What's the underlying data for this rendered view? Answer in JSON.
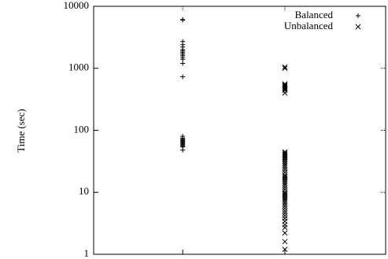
{
  "chart_data": {
    "type": "scatter",
    "ylabel": "Time (sec)",
    "categories": [
      null,
      null
    ],
    "log_y": true,
    "ylim": [
      1,
      10000
    ],
    "yticks": [
      1,
      10,
      100,
      1000,
      10000
    ],
    "legend": "upper right",
    "series": [
      {
        "name": "Balanced",
        "marker": "plus",
        "color": "#000000",
        "values": [
          6000,
          6100,
          2700,
          2400,
          2200,
          2000,
          1900,
          1800,
          1700,
          1600,
          1500,
          1400,
          1200,
          730,
          80,
          75,
          72,
          70,
          68,
          66,
          64,
          62,
          60,
          58,
          56,
          54,
          48
        ]
      },
      {
        "name": "Unbalanced",
        "marker": "cross",
        "color": "#000000",
        "values": [
          1050,
          1000,
          560,
          540,
          520,
          500,
          480,
          460,
          440,
          400,
          45,
          43,
          41,
          39,
          37,
          35,
          33,
          31,
          29,
          27,
          25,
          23,
          21,
          19,
          18,
          17,
          16,
          15,
          14,
          13,
          12,
          11,
          10,
          9.5,
          9,
          8.5,
          8,
          7.5,
          7,
          6.5,
          6,
          5.5,
          5,
          4.6,
          4.2,
          3.8,
          3.4,
          3.0,
          2.7,
          2.2,
          1.6,
          1.2
        ]
      }
    ]
  }
}
